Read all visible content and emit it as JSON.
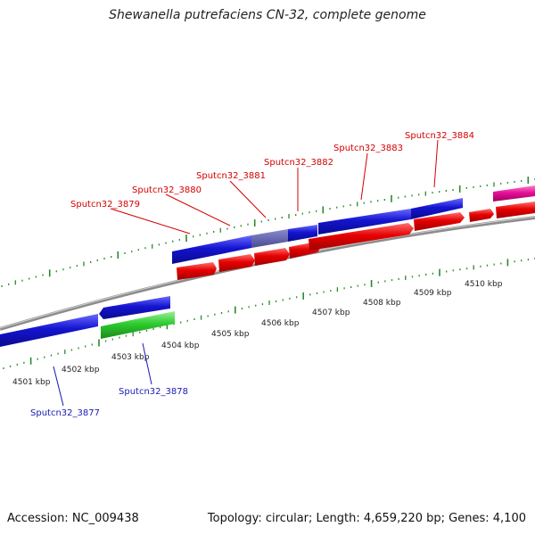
{
  "title": "Shewanella putrefaciens CN-32, complete genome",
  "footer": {
    "accession": "Accession: NC_009438",
    "summary": "Topology: circular; Length: 4,659,220 bp; Genes: 4,100"
  },
  "colors": {
    "top_label": "#d40000",
    "bottom_label": "#1a1ab4",
    "tick": "#2a8a2a",
    "backbone": "#8c8c8c",
    "cds_blue": "#1414d0",
    "cds_red": "#e60000",
    "cds_green": "#2ecc2e",
    "cds_magenta": "#e6109a",
    "cds_highlight": "#5a5aa0"
  },
  "scale_labels": [
    "4501 kbp",
    "4502 kbp",
    "4503 kbp",
    "4504 kbp",
    "4505 kbp",
    "4506 kbp",
    "4507 kbp",
    "4508 kbp",
    "4509 kbp",
    "4510 kbp"
  ],
  "genes_top": [
    "Sputcn32_3879",
    "Sputcn32_3880",
    "Sputcn32_3881",
    "Sputcn32_3882",
    "Sputcn32_3883",
    "Sputcn32_3884"
  ],
  "genes_bottom": [
    "Sputcn32_3877",
    "Sputcn32_3878"
  ]
}
